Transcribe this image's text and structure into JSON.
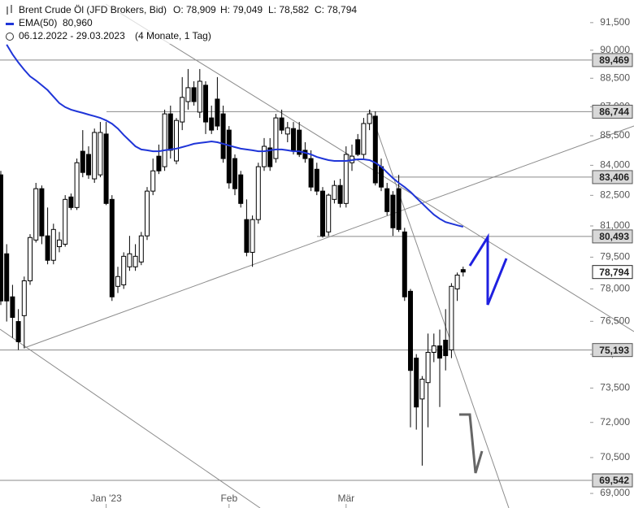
{
  "header": {
    "title": "Brent Crude Öl (JFD Brokers, Bid)",
    "ohlc": [
      "O: 78,909",
      "H: 79,049",
      "L: 78,582",
      "C: 78,794"
    ],
    "ema_value": "80,960",
    "range": "06.12.2022 - 29.03.2023",
    "range_note": "(4 Monate, 1 Tag)"
  },
  "chart_data": {
    "type": "candlestick",
    "log_scale": true,
    "color_up": "#ffffff",
    "color_down": "#000000",
    "open": [
      83520,
      79660,
      77630,
      76490,
      76760,
      78380,
      80320,
      82830,
      80520,
      79350,
      80000,
      80120,
      82420,
      81900,
      84710,
      84550,
      83320,
      83520,
      85590,
      82300,
      78120,
      78190,
      79040,
      79040,
      79270,
      80520,
      82710,
      84460,
      83930,
      86630,
      84220,
      86210,
      87270,
      88000,
      86720,
      88130,
      86420,
      87400,
      86630,
      85790,
      84340,
      83520,
      81310,
      79730,
      81310,
      83930,
      84880,
      84340,
      86420,
      85590,
      85870,
      85790,
      84760,
      84340,
      83800,
      82710,
      80710,
      82300,
      82990,
      82100,
      84130,
      85300,
      84550,
      86130,
      86510,
      83930,
      82830,
      82510,
      82830,
      80710,
      77890,
      74830,
      73020,
      73740,
      75090,
      75380,
      75640,
      75200,
      78000,
      78909
    ],
    "high": [
      83720,
      80120,
      78190,
      77060,
      78580,
      80600,
      83120,
      82990,
      81900,
      81110,
      80710,
      82510,
      82590,
      84340,
      85790,
      84960,
      85870,
      86210,
      86210,
      82510,
      79040,
      79730,
      80520,
      80120,
      80710,
      82910,
      84340,
      85050,
      86850,
      87060,
      86420,
      88560,
      88990,
      88340,
      88990,
      88340,
      87060,
      88560,
      87060,
      86000,
      84550,
      83720,
      82300,
      81510,
      84130,
      85380,
      85380,
      86630,
      86850,
      86210,
      86210,
      86210,
      85170,
      84760,
      84130,
      82910,
      82590,
      83240,
      83320,
      84960,
      85050,
      85590,
      86420,
      86850,
      86760,
      84340,
      83120,
      82710,
      83520,
      80910,
      78000,
      75010,
      74030,
      75940,
      75940,
      76120,
      77060,
      78270,
      78770,
      79049
    ],
    "low": [
      77250,
      76490,
      75750,
      75200,
      75270,
      78190,
      80200,
      80120,
      79160,
      79160,
      79730,
      80000,
      81780,
      81780,
      83400,
      83320,
      83120,
      83400,
      82020,
      77440,
      77810,
      78000,
      78850,
      78850,
      79120,
      80320,
      82510,
      83560,
      83720,
      84340,
      84050,
      85790,
      86850,
      87060,
      86420,
      85590,
      85590,
      85790,
      84130,
      82830,
      82510,
      81900,
      79540,
      79040,
      81110,
      83720,
      83720,
      84130,
      85590,
      85170,
      84550,
      84420,
      84130,
      82710,
      82510,
      80440,
      80520,
      82100,
      81900,
      81900,
      83720,
      84460,
      84340,
      85790,
      82990,
      82710,
      81510,
      80520,
      80710,
      77440,
      71790,
      71690,
      70160,
      71790,
      74650,
      72670,
      74280,
      74830,
      77440,
      78582
    ],
    "close": [
      77440,
      77440,
      76680,
      75570,
      78380,
      80440,
      82830,
      80520,
      79350,
      80830,
      80320,
      82300,
      81900,
      84130,
      83640,
      83520,
      85670,
      85670,
      82100,
      77630,
      78580,
      79540,
      79660,
      79540,
      80520,
      82710,
      83720,
      83720,
      86630,
      84760,
      86290,
      87490,
      88000,
      87270,
      88340,
      86210,
      85790,
      86000,
      84340,
      83120,
      82830,
      82100,
      79730,
      81310,
      83930,
      84960,
      83930,
      86420,
      85790,
      85910,
      84760,
      84550,
      84340,
      82910,
      82710,
      80520,
      82510,
      82990,
      82100,
      84550,
      84460,
      84550,
      86130,
      86630,
      83120,
      82910,
      81700,
      80910,
      80830,
      77630,
      74280,
      72670,
      73890,
      75090,
      75380,
      74830,
      74940,
      78120,
      78650,
      78794
    ],
    "series": [
      {
        "name": "EMA(50)",
        "color": "#1f35d8",
        "values": [
          null,
          90300,
          89780,
          89340,
          88950,
          88600,
          88380,
          88130,
          87870,
          87530,
          87190,
          86980,
          86850,
          86760,
          86680,
          86590,
          86510,
          86420,
          86290,
          86120,
          85870,
          85540,
          85250,
          84960,
          84800,
          84760,
          84710,
          84710,
          84760,
          84800,
          84840,
          84920,
          85000,
          85090,
          85130,
          85170,
          85210,
          85170,
          85090,
          85000,
          84920,
          84840,
          84800,
          84760,
          84710,
          84710,
          84760,
          84800,
          84800,
          84760,
          84710,
          84710,
          84630,
          84550,
          84420,
          84340,
          84260,
          84220,
          84220,
          84220,
          84260,
          84300,
          84300,
          84260,
          84130,
          83930,
          83640,
          83360,
          83120,
          82910,
          82670,
          82380,
          82100,
          81820,
          81550,
          81350,
          81190,
          81110,
          81030,
          80960
        ]
      }
    ],
    "levels": {
      "color": "#8a8a8a",
      "values": [
        89469,
        86744,
        83406,
        80493,
        75193,
        69542
      ],
      "value_labels": [
        "89,469",
        "86,744",
        "83,406",
        "80,493",
        "75,193",
        "69,542"
      ]
    },
    "last_label": "78,794",
    "ylim": [
      68400,
      92750
    ],
    "yticks": [
      {
        "value": 91500,
        "label": "91,500"
      },
      {
        "value": 90000,
        "label": "90,000"
      },
      {
        "value": 88500,
        "label": "88,500"
      },
      {
        "value": 87000,
        "label": "87,000"
      },
      {
        "value": 85500,
        "label": "85,500"
      },
      {
        "value": 84000,
        "label": "84,000"
      },
      {
        "value": 82500,
        "label": "82,500"
      },
      {
        "value": 81000,
        "label": "81,000"
      },
      {
        "value": 79500,
        "label": "79,500"
      },
      {
        "value": 78000,
        "label": "78,000"
      },
      {
        "value": 76500,
        "label": "76,500"
      },
      {
        "value": 75000,
        "label": "75,000"
      },
      {
        "value": 73500,
        "label": "73,500"
      },
      {
        "value": 72000,
        "label": "72,000"
      },
      {
        "value": 70500,
        "label": "70,500"
      },
      {
        "value": 69000,
        "label": "69,000"
      }
    ],
    "xticks": [
      {
        "value": 18,
        "label": "Jan '23"
      },
      {
        "value": 39,
        "label": "Feb"
      },
      {
        "value": 59,
        "label": "Mär"
      }
    ]
  }
}
